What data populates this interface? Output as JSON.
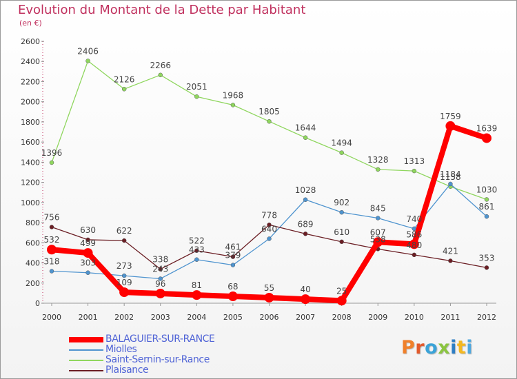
{
  "title": "Evolution du Montant de la Dette par Habitant",
  "unit": "(en €)",
  "logo": {
    "text": "Proxiti",
    "letters": [
      "P",
      "r",
      "o",
      "x",
      "i",
      "t",
      "i"
    ],
    "colors": [
      "#f0802a",
      "#e25a2c",
      "#3aa3d8",
      "#8bc540",
      "#2e7ec4",
      "#f4b821",
      "#4ea8df"
    ]
  },
  "chart_data": {
    "type": "line",
    "title": "Evolution du Montant de la Dette par Habitant",
    "ylabel": "(en €)",
    "xlabel": "",
    "x": [
      "2000",
      "2001",
      "2002",
      "2003",
      "2004",
      "2005",
      "2006",
      "2007",
      "2008",
      "2009",
      "2010",
      "2011",
      "2012"
    ],
    "ylim": [
      0,
      2600
    ],
    "yticks": [
      0,
      200,
      400,
      600,
      800,
      1000,
      1200,
      1400,
      1600,
      1800,
      2000,
      2200,
      2400,
      2600
    ],
    "grid": false,
    "legend_position": "bottom-left",
    "series": [
      {
        "name": "BALAGUIER-SUR-RANCE",
        "color": "#ff0000",
        "emphasis": true,
        "values": [
          532,
          499,
          109,
          96,
          81,
          68,
          55,
          40,
          25,
          607,
          586,
          1759,
          1639
        ]
      },
      {
        "name": "Miolles",
        "color": "#4f94cf",
        "emphasis": false,
        "values": [
          318,
          303,
          273,
          243,
          433,
          379,
          640,
          1028,
          902,
          845,
          740,
          1184,
          861
        ]
      },
      {
        "name": "Saint-Sernin-sur-Rance",
        "color": "#8fd65e",
        "emphasis": false,
        "values": [
          1396,
          2406,
          2126,
          2266,
          2051,
          1968,
          1805,
          1644,
          1494,
          1328,
          1313,
          1158,
          1030
        ]
      },
      {
        "name": "Plaisance",
        "color": "#6b1e24",
        "emphasis": false,
        "values": [
          756,
          630,
          622,
          338,
          522,
          461,
          778,
          689,
          610,
          538,
          480,
          421,
          353
        ]
      }
    ]
  }
}
